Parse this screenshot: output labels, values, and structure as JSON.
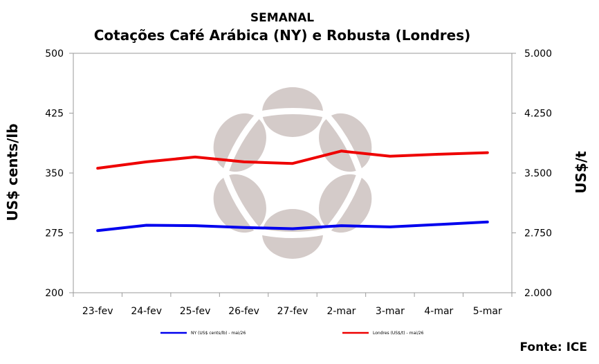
{
  "chart_data": {
    "type": "line",
    "title": "SEMANAL",
    "subtitle": "Cotações Café Arábica (NY) e Robusta (Londres)",
    "categories": [
      "23-fev",
      "24-fev",
      "25-fev",
      "26-fev",
      "27-fev",
      "2-mar",
      "3-mar",
      "4-mar",
      "5-mar"
    ],
    "y_left": {
      "label": "US$ cents/lb",
      "range": [
        200,
        500
      ],
      "ticks": [
        200,
        275,
        350,
        425,
        500
      ],
      "tick_labels": [
        "200",
        "275",
        "350",
        "425",
        "500"
      ]
    },
    "y_right": {
      "label": "US$/t",
      "range": [
        2000,
        5000
      ],
      "ticks": [
        2000,
        2750,
        3500,
        4250,
        5000
      ],
      "tick_labels": [
        "2.000",
        "2.750",
        "3.500",
        "4.250",
        "5.000"
      ]
    },
    "series": [
      {
        "name": "NY (US$ cents/lb) - mai/26",
        "axis": "left",
        "color": "#0000ee",
        "values": [
          277.8,
          284.5,
          284.0,
          281.8,
          280.2,
          284.0,
          282.5,
          285.5,
          288.6
        ]
      },
      {
        "name": "Londres (US$/t) - mai/26",
        "axis": "right",
        "color": "#ee0000",
        "values": [
          3560,
          3640,
          3700,
          3640,
          3620,
          3775,
          3710,
          3735,
          3755
        ]
      }
    ],
    "grid": false,
    "legend_position": "bottom"
  },
  "source": "Fonte: ICE"
}
